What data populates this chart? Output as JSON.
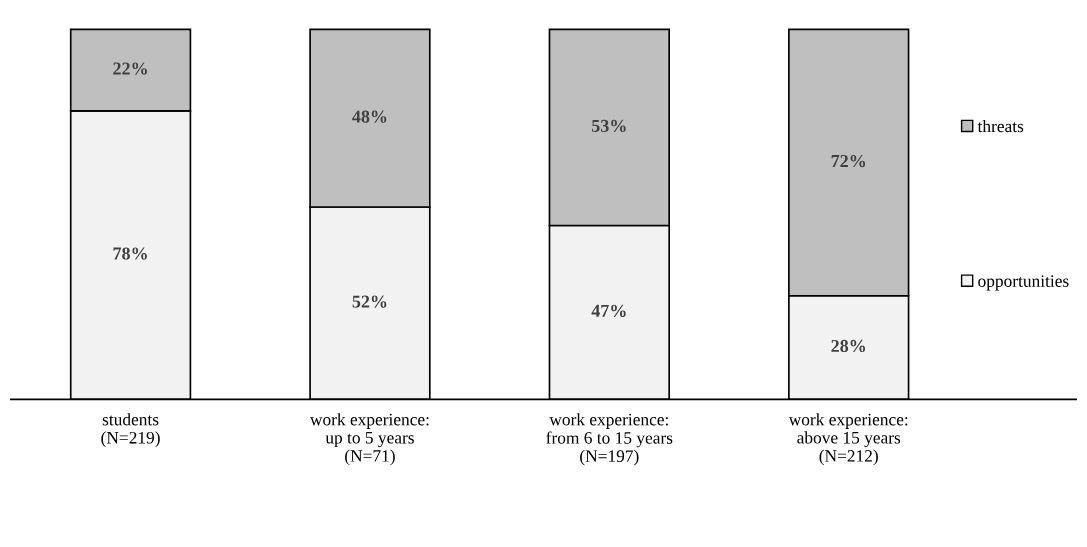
{
  "chart_data": {
    "type": "bar",
    "stacked": true,
    "categories": [
      "students\n(N=219)",
      "work experience:\nup to 5 years\n(N=71)",
      "work experience:\nfrom 6 to 15 years\n(N=197)",
      "work experience:\nabove 15 years\n(N=212)"
    ],
    "series": [
      {
        "name": "opportunities",
        "color": "#f2f2f2",
        "values": [
          78,
          52,
          47,
          28
        ],
        "value_labels": [
          "78%",
          "52%",
          "47%",
          "28%"
        ]
      },
      {
        "name": "threats",
        "color": "#bfbfbf",
        "values": [
          22,
          48,
          53,
          72
        ],
        "value_labels": [
          "22%",
          "48%",
          "53%",
          "72%"
        ]
      }
    ],
    "tick_labels": "x",
    "legend": "right",
    "marker": "square",
    "grid": false
  }
}
